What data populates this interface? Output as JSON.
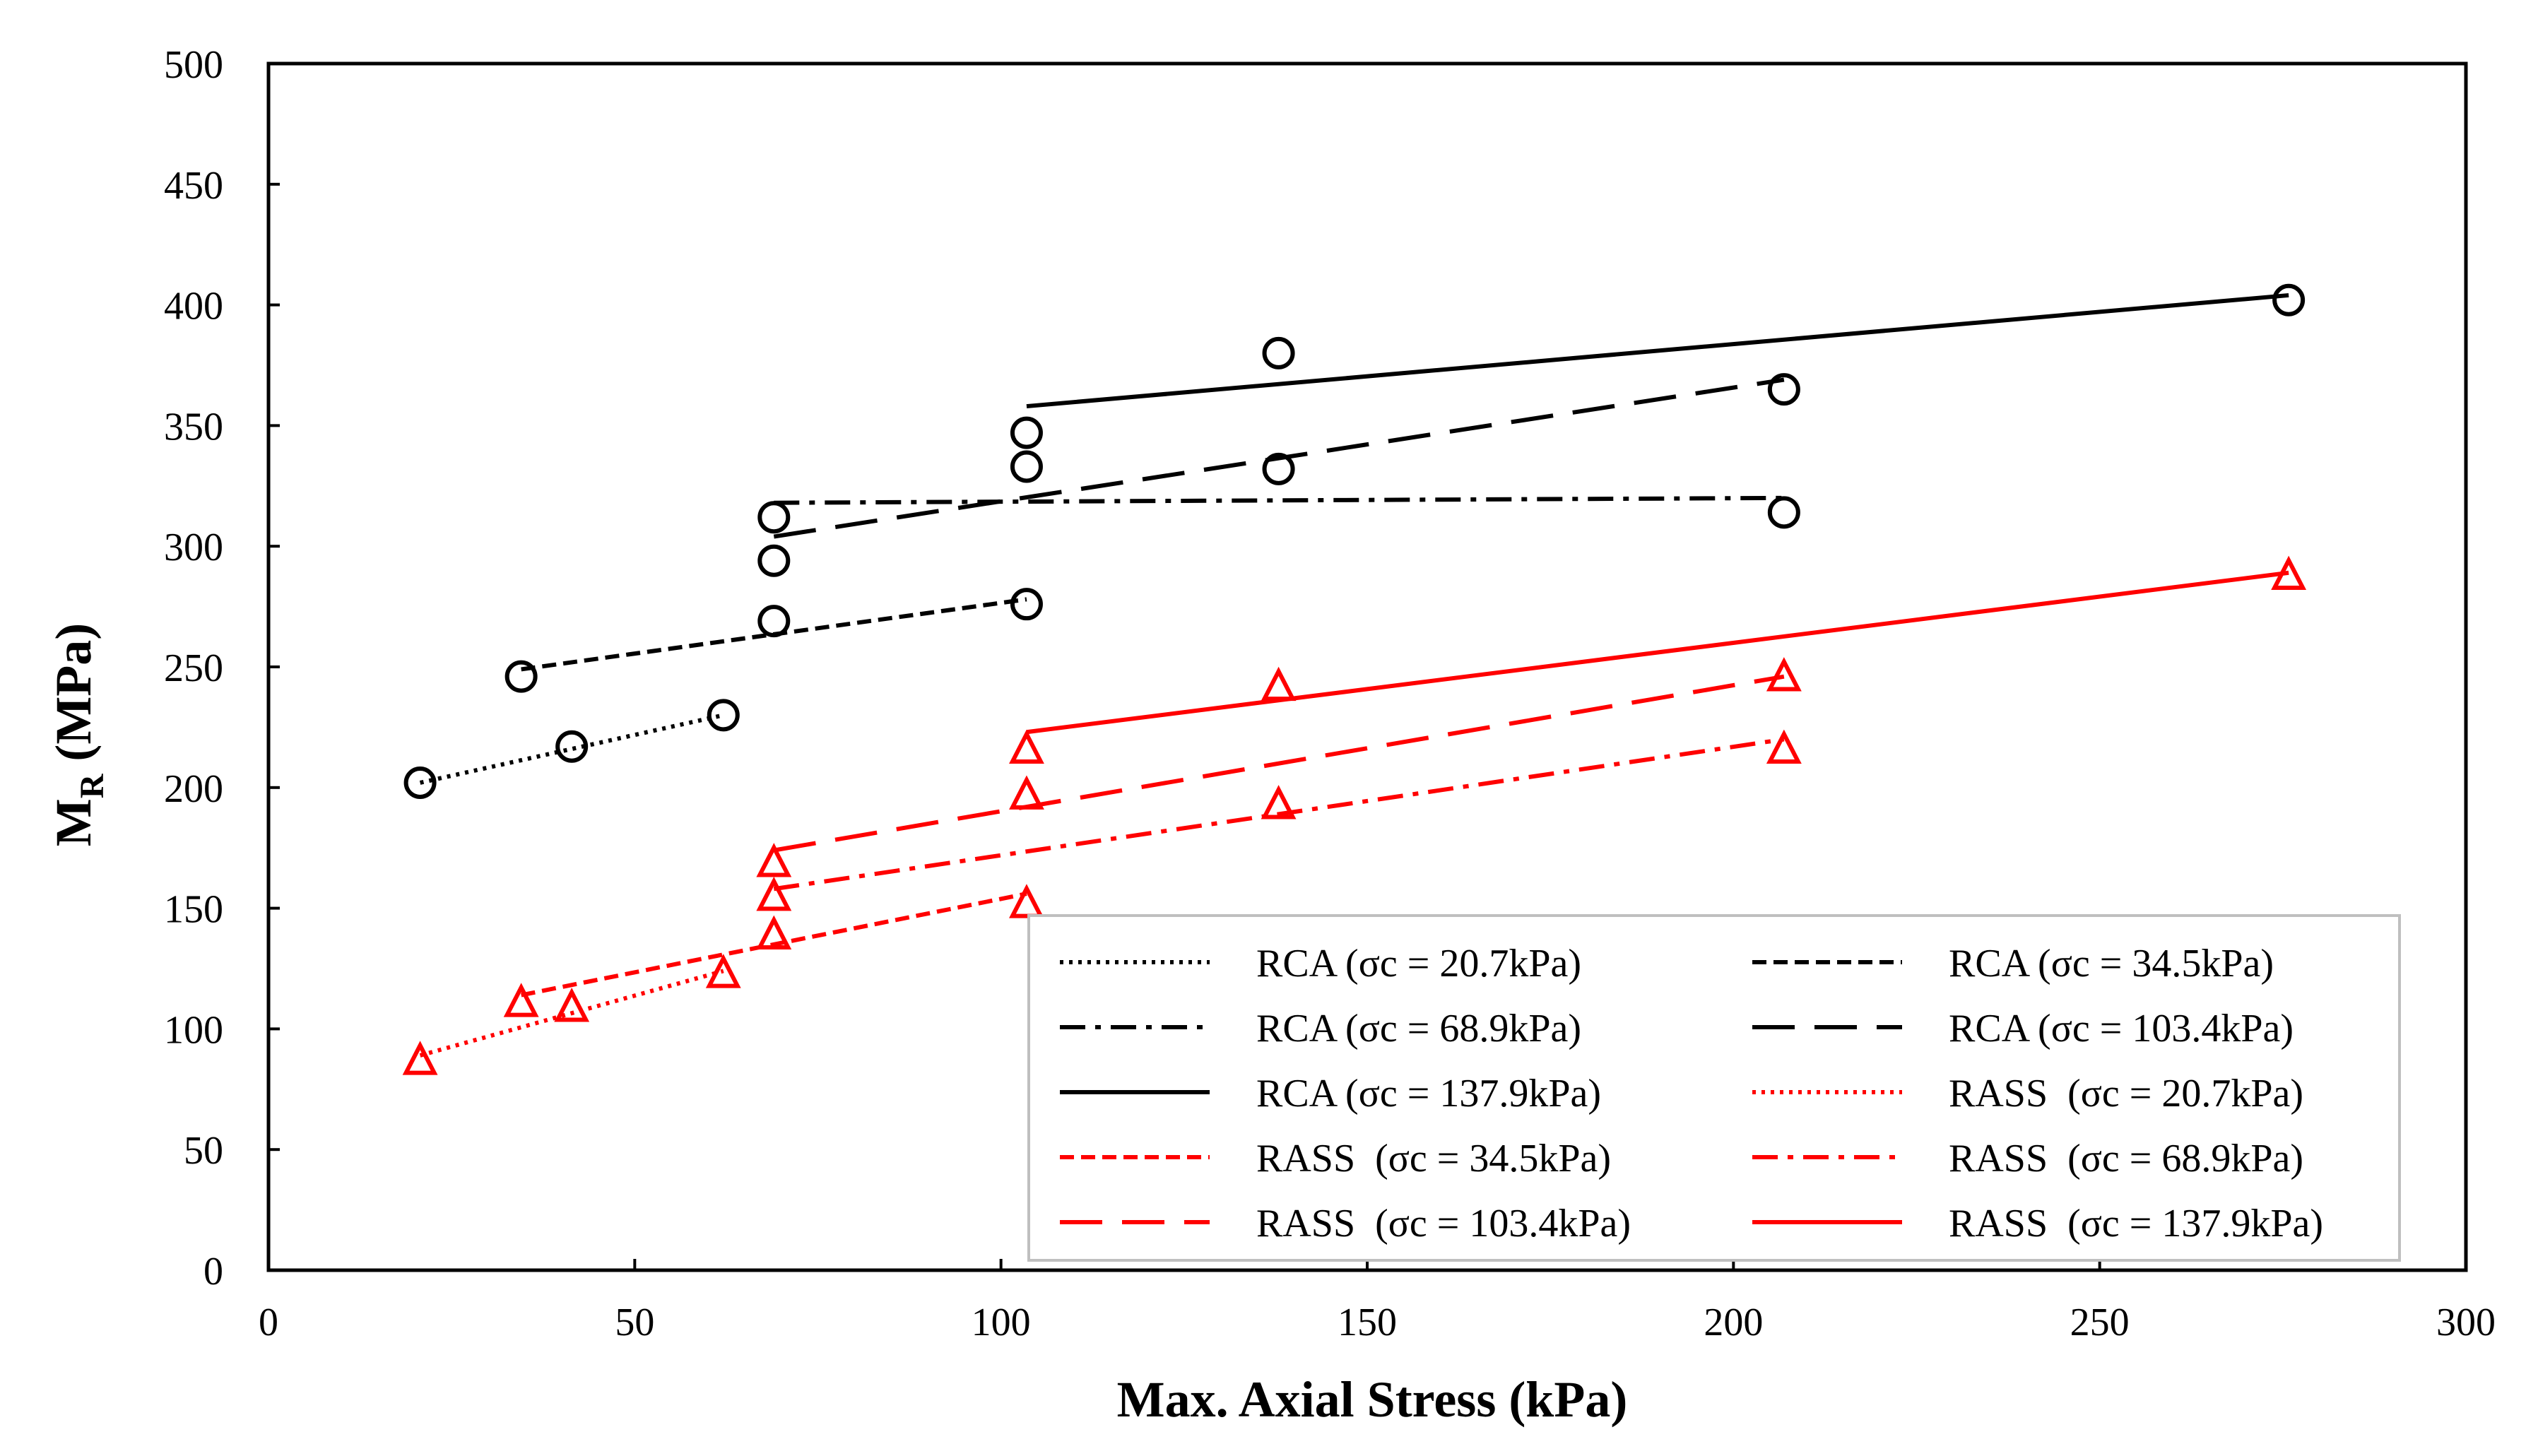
{
  "chart_data": {
    "type": "scatter",
    "xlabel": "Max. Axial Stress (kPa)",
    "ylabel_main": "M",
    "ylabel_sub": "R",
    "ylabel_unit": " (MPa)",
    "xlim": [
      0,
      300
    ],
    "ylim": [
      0,
      500
    ],
    "xticks": [
      0,
      50,
      100,
      150,
      200,
      250,
      300
    ],
    "yticks": [
      0,
      50,
      100,
      150,
      200,
      250,
      300,
      350,
      400,
      450,
      500
    ],
    "xtick_labels": [
      "0",
      "50",
      "100",
      "150",
      "200",
      "250",
      "300"
    ],
    "ytick_labels": [
      "0",
      "50",
      "100",
      "150",
      "200",
      "250",
      "300",
      "350",
      "400",
      "450",
      "500"
    ],
    "grid": false,
    "legend_position": "bottom-right",
    "series": [
      {
        "name": "RCA (σc = 20.7kPa)",
        "material": "RCA",
        "color": "#000000",
        "marker": "circle",
        "dash": "dotted",
        "points": [
          [
            20.7,
            202
          ],
          [
            41.4,
            217
          ],
          [
            62.1,
            230
          ]
        ],
        "fit": [
          [
            20.7,
            202
          ],
          [
            62.1,
            230
          ]
        ]
      },
      {
        "name": "RCA (σc = 34.5kPa)",
        "material": "RCA",
        "color": "#000000",
        "marker": "circle",
        "dash": "short",
        "points": [
          [
            34.5,
            246
          ],
          [
            69.0,
            269
          ],
          [
            103.5,
            276
          ]
        ],
        "fit": [
          [
            34.5,
            249
          ],
          [
            103.5,
            278
          ]
        ]
      },
      {
        "name": "RCA (σc = 68.9kPa)",
        "material": "RCA",
        "color": "#000000",
        "marker": "circle",
        "dash": "dashdot",
        "points": [
          [
            69.0,
            312
          ],
          [
            103.5,
            333
          ],
          [
            206.9,
            314
          ]
        ],
        "fit": [
          [
            69.0,
            318
          ],
          [
            206.9,
            320
          ]
        ]
      },
      {
        "name": "RCA (σc = 103.4kPa)",
        "material": "RCA",
        "color": "#000000",
        "marker": "circle",
        "dash": "long",
        "points": [
          [
            69.0,
            294
          ],
          [
            137.9,
            332
          ],
          [
            206.9,
            365
          ]
        ],
        "fit": [
          [
            69.0,
            304
          ],
          [
            206.9,
            369
          ]
        ]
      },
      {
        "name": "RCA (σc = 137.9kPa)",
        "material": "RCA",
        "color": "#000000",
        "marker": "circle",
        "dash": "solid",
        "points": [
          [
            103.5,
            347
          ],
          [
            137.9,
            380
          ],
          [
            275.8,
            402
          ]
        ],
        "fit": [
          [
            103.5,
            358
          ],
          [
            275.8,
            404
          ]
        ]
      },
      {
        "name": "RASS  (σc = 20.7kPa)",
        "material": "RASS",
        "color": "#ff0000",
        "marker": "triangle",
        "dash": "dotted",
        "points": [
          [
            20.7,
            87
          ],
          [
            41.4,
            109
          ],
          [
            62.1,
            123
          ]
        ],
        "fit": [
          [
            20.7,
            89
          ],
          [
            62.1,
            124
          ]
        ]
      },
      {
        "name": "RASS  (σc = 34.5kPa)",
        "material": "RASS",
        "color": "#ff0000",
        "marker": "triangle",
        "dash": "short",
        "points": [
          [
            34.5,
            111
          ],
          [
            69.0,
            139
          ],
          [
            103.5,
            152
          ]
        ],
        "fit": [
          [
            34.5,
            114
          ],
          [
            103.5,
            156
          ]
        ]
      },
      {
        "name": "RASS  (σc = 68.9kPa)",
        "material": "RASS",
        "color": "#ff0000",
        "marker": "triangle",
        "dash": "dashdot",
        "points": [
          [
            69.0,
            155
          ],
          [
            137.9,
            193
          ],
          [
            206.9,
            216
          ]
        ],
        "fit": [
          [
            69.0,
            158
          ],
          [
            206.9,
            220
          ]
        ]
      },
      {
        "name": "RASS  (σc = 103.4kPa)",
        "material": "RASS",
        "color": "#ff0000",
        "marker": "triangle",
        "dash": "long",
        "points": [
          [
            69.0,
            169
          ],
          [
            103.5,
            197
          ],
          [
            206.9,
            246
          ]
        ],
        "fit": [
          [
            69.0,
            174
          ],
          [
            206.9,
            246
          ]
        ]
      },
      {
        "name": "RASS  (σc = 137.9kPa)",
        "material": "RASS",
        "color": "#ff0000",
        "marker": "triangle",
        "dash": "solid",
        "points": [
          [
            103.5,
            216
          ],
          [
            137.9,
            242
          ],
          [
            275.8,
            288
          ]
        ],
        "fit": [
          [
            103.5,
            223
          ],
          [
            275.8,
            289
          ]
        ]
      }
    ]
  }
}
